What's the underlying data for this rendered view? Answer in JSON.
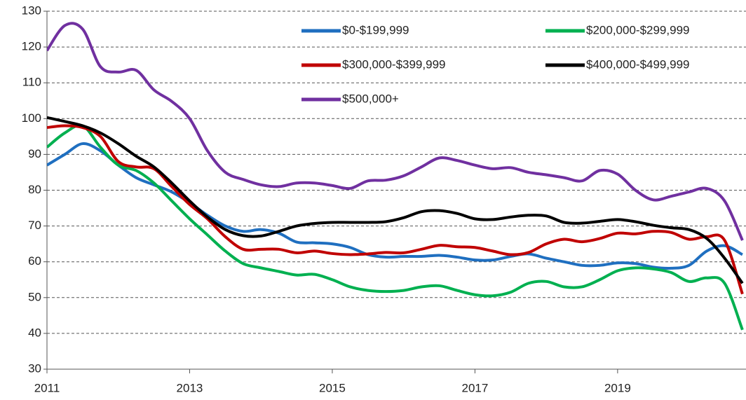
{
  "chart_data": {
    "type": "line",
    "x": [
      2011,
      2011.25,
      2011.5,
      2011.75,
      2012,
      2012.25,
      2012.5,
      2012.75,
      2013,
      2013.25,
      2013.5,
      2013.75,
      2014,
      2014.25,
      2014.5,
      2014.75,
      2015,
      2015.25,
      2015.5,
      2015.75,
      2016,
      2016.25,
      2016.5,
      2016.75,
      2017,
      2017.25,
      2017.5,
      2017.75,
      2018,
      2018.25,
      2018.5,
      2018.75,
      2019,
      2019.25,
      2019.5,
      2019.75,
      2020,
      2020.25,
      2020.5,
      2020.75
    ],
    "series": [
      {
        "name": "$0-$199,999",
        "color": "#1f6fc0",
        "values": [
          87,
          90,
          93,
          91,
          87,
          83.5,
          81.5,
          79.5,
          76.5,
          73,
          70,
          68.5,
          69,
          68,
          65.5,
          65.3,
          65,
          64,
          62,
          61.3,
          61.5,
          61.5,
          61.8,
          61.3,
          60.5,
          60.5,
          61.5,
          62.2,
          61,
          60,
          59,
          59,
          59.7,
          59.5,
          58.5,
          58.2,
          59,
          63,
          64.5,
          62
        ]
      },
      {
        "name": "$200,000-$299,999",
        "color": "#00b050",
        "values": [
          92,
          96,
          98,
          92,
          87,
          85.5,
          82,
          77,
          72,
          67.5,
          63,
          59.5,
          58.3,
          57.3,
          56.3,
          56.5,
          55,
          53,
          52,
          51.7,
          52,
          53,
          53.3,
          52,
          50.8,
          50.5,
          51.5,
          54,
          54.5,
          53,
          53,
          55,
          57.5,
          58.3,
          58,
          57,
          54.5,
          55.5,
          54,
          41
        ]
      },
      {
        "name": "$300,000-$399,999",
        "color": "#c00000",
        "values": [
          97.5,
          98,
          97.5,
          95,
          88,
          86.5,
          86,
          81,
          76,
          72,
          67,
          63.5,
          63.5,
          63.5,
          62.5,
          63,
          62.3,
          62,
          62.2,
          62.6,
          62.5,
          63.5,
          64.6,
          64.2,
          64,
          63,
          62,
          62.6,
          65,
          66.3,
          65.6,
          66.5,
          68,
          67.8,
          68.5,
          68.2,
          66.3,
          67,
          66,
          51
        ]
      },
      {
        "name": "$400,000-$499,999",
        "color": "#000000",
        "values": [
          100.3,
          99.2,
          98,
          96,
          93,
          89.5,
          86.5,
          82,
          77,
          72.5,
          69,
          67.3,
          67.2,
          68.5,
          70,
          70.7,
          71,
          71,
          71,
          71.2,
          72.3,
          74,
          74.3,
          73.5,
          72,
          71.8,
          72.5,
          73,
          72.8,
          71,
          70.8,
          71.3,
          71.8,
          71.2,
          70.2,
          69.5,
          69,
          66.5,
          61,
          54
        ]
      },
      {
        "name": "$500,000+",
        "color": "#7030a0",
        "values": [
          119,
          126,
          125,
          114.5,
          113,
          113.5,
          108,
          104.8,
          100,
          91,
          85,
          83,
          81.5,
          81,
          82,
          82,
          81.3,
          80.5,
          82.6,
          82.8,
          84,
          86.5,
          89,
          88.3,
          87,
          86,
          86.3,
          85,
          84.3,
          83.5,
          82.6,
          85.5,
          84.5,
          80,
          77.3,
          78.3,
          79.5,
          80.5,
          77,
          66
        ]
      }
    ],
    "xlim": [
      2011,
      2020.8
    ],
    "xticks": [
      2011,
      2013,
      2015,
      2017,
      2019
    ],
    "ylim": [
      30,
      130
    ],
    "yticks": [
      30,
      40,
      50,
      60,
      70,
      80,
      90,
      100,
      110,
      120,
      130
    ],
    "grid": true,
    "legend": "top-right"
  }
}
